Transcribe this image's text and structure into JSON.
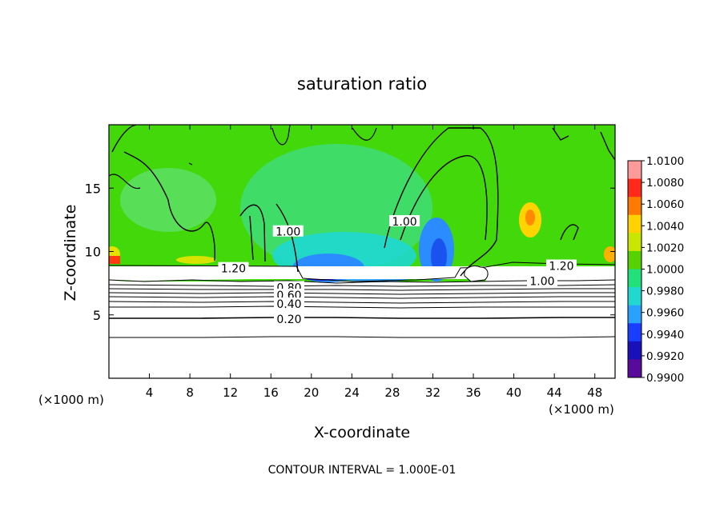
{
  "chart_data": {
    "type": "heatmap",
    "title": "saturation ratio",
    "xlabel": "X-coordinate",
    "ylabel": "Z-coordinate",
    "x_unit": "(×1000 m)",
    "x_unit_right": "(×1000 m)",
    "xlim": [
      0,
      50
    ],
    "ylim": [
      0,
      20
    ],
    "x_ticks": [
      4,
      8,
      12,
      16,
      20,
      24,
      28,
      32,
      36,
      40,
      44,
      48
    ],
    "y_ticks": [
      5,
      10,
      15
    ],
    "colorbar": {
      "ticks": [
        "1.0100",
        "1.0080",
        "1.0060",
        "1.0040",
        "1.0020",
        "1.0000",
        "0.9980",
        "0.9960",
        "0.9940",
        "0.9920",
        "0.9900"
      ],
      "colors": [
        "#ff9a9a",
        "#ff2a1a",
        "#ff7a00",
        "#ffd200",
        "#c8e600",
        "#55d200",
        "#22e07a",
        "#20d8d0",
        "#2aa0ff",
        "#1a3cff",
        "#1a10b8",
        "#5a0a9a"
      ]
    },
    "contour_labels": [
      {
        "text": "1.20",
        "x": 12.3,
        "z": 8.6
      },
      {
        "text": "1.00",
        "x": 17.7,
        "z": 11.5
      },
      {
        "text": "1.00",
        "x": 29.2,
        "z": 12.3
      },
      {
        "text": "1.20",
        "x": 44.7,
        "z": 8.8
      },
      {
        "text": "1.00",
        "x": 42.8,
        "z": 7.6
      },
      {
        "text": "0.80",
        "x": 17.8,
        "z": 7.1
      },
      {
        "text": "0.60",
        "x": 17.8,
        "z": 6.5
      },
      {
        "text": "0.40",
        "x": 17.8,
        "z": 5.8
      },
      {
        "text": "0.20",
        "x": 17.8,
        "z": 4.6
      }
    ],
    "contour_interval_label": "CONTOUR INTERVAL =  1.000E-01"
  }
}
